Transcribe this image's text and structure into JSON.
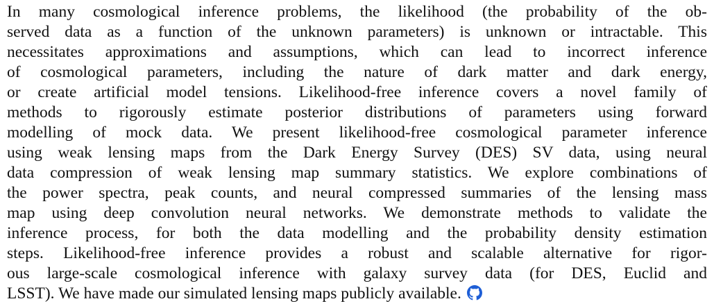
{
  "abstract": {
    "lines": [
      "In many cosmological inference problems, the likelihood (the probability of the ob-",
      "served data as a function of the unknown parameters) is unknown or intractable. This",
      "necessitates approximations and assumptions, which can lead to incorrect inference",
      "of cosmological parameters, including the nature of dark matter and dark energy,",
      "or create artificial model tensions. Likelihood-free inference covers a novel family of",
      "methods to rigorously estimate posterior distributions of parameters using forward",
      "modelling of mock data. We present likelihood-free cosmological parameter inference",
      "using weak lensing maps from the Dark Energy Survey (DES) SV data, using neural",
      "data compression of weak lensing map summary statistics. We explore combinations of",
      "the power spectra, peak counts, and neural compressed summaries of the lensing mass",
      "map using deep convolution neural networks. We demonstrate methods to validate the",
      "inference process, for both the data modelling and the probability density estimation",
      "steps. Likelihood-free inference provides a robust and scalable alternative for rigor-",
      "ous large-scale cosmological inference with galaxy survey data (for DES, Euclid and",
      "LSST). We have made our simulated lensing maps publicly available."
    ]
  }
}
